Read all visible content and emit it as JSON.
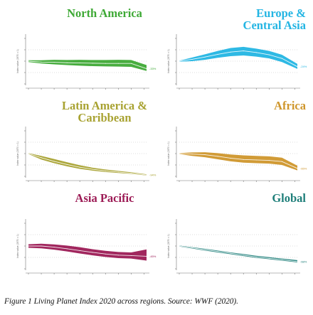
{
  "caption": "Figure 1 Living Planet Index 2020 across regions. Source: WWF (2020).",
  "chart_data": [
    {
      "type": "area",
      "title": "North America",
      "color": "#3ea935",
      "title_color": "#3ea935",
      "ylabel": "Index value (1970 = 1)",
      "x": [
        1970,
        1975,
        1980,
        1985,
        1990,
        1995,
        2000,
        2005,
        2010,
        2016
      ],
      "center": [
        1.0,
        0.96,
        0.95,
        0.93,
        0.92,
        0.91,
        0.9,
        0.9,
        0.9,
        0.67
      ],
      "upper": [
        1.04,
        1.04,
        1.06,
        1.05,
        1.06,
        1.05,
        1.05,
        1.06,
        1.05,
        0.83
      ],
      "lower": [
        0.96,
        0.9,
        0.86,
        0.83,
        0.8,
        0.78,
        0.77,
        0.76,
        0.75,
        0.57
      ],
      "end_label": "-33%",
      "ylim": [
        0,
        2
      ],
      "xlim": [
        1970,
        2016
      ],
      "grid": true
    },
    {
      "type": "area",
      "title": "Europe & Central Asia",
      "color": "#23b5e3",
      "title_color": "#23b5e3",
      "ylabel": "Index value (1970 = 1)",
      "x": [
        1970,
        1975,
        1980,
        1985,
        1990,
        1995,
        2000,
        2005,
        2010,
        2016
      ],
      "center": [
        1.0,
        1.08,
        1.18,
        1.3,
        1.4,
        1.45,
        1.38,
        1.28,
        1.12,
        0.76
      ],
      "upper": [
        1.02,
        1.16,
        1.3,
        1.45,
        1.58,
        1.63,
        1.55,
        1.45,
        1.28,
        0.88
      ],
      "lower": [
        0.98,
        1.0,
        1.06,
        1.15,
        1.22,
        1.25,
        1.2,
        1.12,
        0.96,
        0.66
      ],
      "end_label": "-24%",
      "ylim": [
        0,
        2
      ],
      "xlim": [
        1970,
        2016
      ],
      "grid": true
    },
    {
      "type": "area",
      "title": "Latin America & Caribbean",
      "color": "#a8a231",
      "title_color": "#a8a231",
      "ylabel": "Index value (1970 = 1)",
      "x": [
        1970,
        1975,
        1980,
        1985,
        1990,
        1995,
        2000,
        2005,
        2010,
        2016
      ],
      "center": [
        1.0,
        0.82,
        0.66,
        0.52,
        0.4,
        0.31,
        0.24,
        0.19,
        0.14,
        0.06
      ],
      "upper": [
        1.02,
        0.9,
        0.76,
        0.62,
        0.49,
        0.38,
        0.3,
        0.24,
        0.18,
        0.09
      ],
      "lower": [
        0.98,
        0.74,
        0.58,
        0.44,
        0.33,
        0.25,
        0.19,
        0.15,
        0.11,
        0.04
      ],
      "end_label": "-94%",
      "ylim": [
        0,
        2
      ],
      "xlim": [
        1970,
        2016
      ],
      "grid": true
    },
    {
      "type": "area",
      "title": "Africa",
      "color": "#cf962b",
      "title_color": "#cf962b",
      "ylabel": "Index value (1970 = 1)",
      "x": [
        1970,
        1975,
        1980,
        1985,
        1990,
        1995,
        2000,
        2005,
        2010,
        2016
      ],
      "center": [
        1.0,
        0.98,
        0.95,
        0.88,
        0.8,
        0.74,
        0.72,
        0.7,
        0.65,
        0.35
      ],
      "upper": [
        1.02,
        1.05,
        1.06,
        1.02,
        0.96,
        0.92,
        0.9,
        0.88,
        0.82,
        0.47
      ],
      "lower": [
        0.98,
        0.9,
        0.84,
        0.75,
        0.66,
        0.6,
        0.58,
        0.56,
        0.5,
        0.26
      ],
      "end_label": "-65%",
      "ylim": [
        0,
        2
      ],
      "xlim": [
        1970,
        2016
      ],
      "grid": true
    },
    {
      "type": "area",
      "title": "Asia Pacific",
      "color": "#9c1b55",
      "title_color": "#9c1b55",
      "ylabel": "Index value (1970 = 1)",
      "x": [
        1970,
        1975,
        1980,
        1985,
        1990,
        1995,
        2000,
        2005,
        2010,
        2016
      ],
      "center": [
        1.0,
        1.0,
        0.95,
        0.88,
        0.8,
        0.72,
        0.65,
        0.6,
        0.58,
        0.55
      ],
      "upper": [
        1.08,
        1.1,
        1.07,
        1.02,
        0.95,
        0.86,
        0.79,
        0.74,
        0.72,
        0.85
      ],
      "lower": [
        0.92,
        0.9,
        0.84,
        0.76,
        0.67,
        0.59,
        0.52,
        0.47,
        0.45,
        0.36
      ],
      "end_label": "-45%",
      "ylim": [
        0,
        2
      ],
      "xlim": [
        1970,
        2016
      ],
      "grid": true
    },
    {
      "type": "area",
      "title": "Global",
      "color": "#1f7f7a",
      "title_color": "#1f7f7a",
      "ylabel": "Index value (1970 = 1)",
      "x": [
        1970,
        1975,
        1980,
        1985,
        1990,
        1995,
        2000,
        2005,
        2010,
        2016
      ],
      "center": [
        1.0,
        0.92,
        0.84,
        0.76,
        0.68,
        0.6,
        0.52,
        0.46,
        0.4,
        0.32
      ],
      "upper": [
        1.02,
        0.95,
        0.88,
        0.8,
        0.72,
        0.65,
        0.57,
        0.51,
        0.45,
        0.38
      ],
      "lower": [
        0.98,
        0.89,
        0.8,
        0.72,
        0.64,
        0.56,
        0.48,
        0.42,
        0.36,
        0.28
      ],
      "end_label": "-68%",
      "ylim": [
        0,
        2
      ],
      "xlim": [
        1970,
        2016
      ],
      "grid": true
    }
  ]
}
